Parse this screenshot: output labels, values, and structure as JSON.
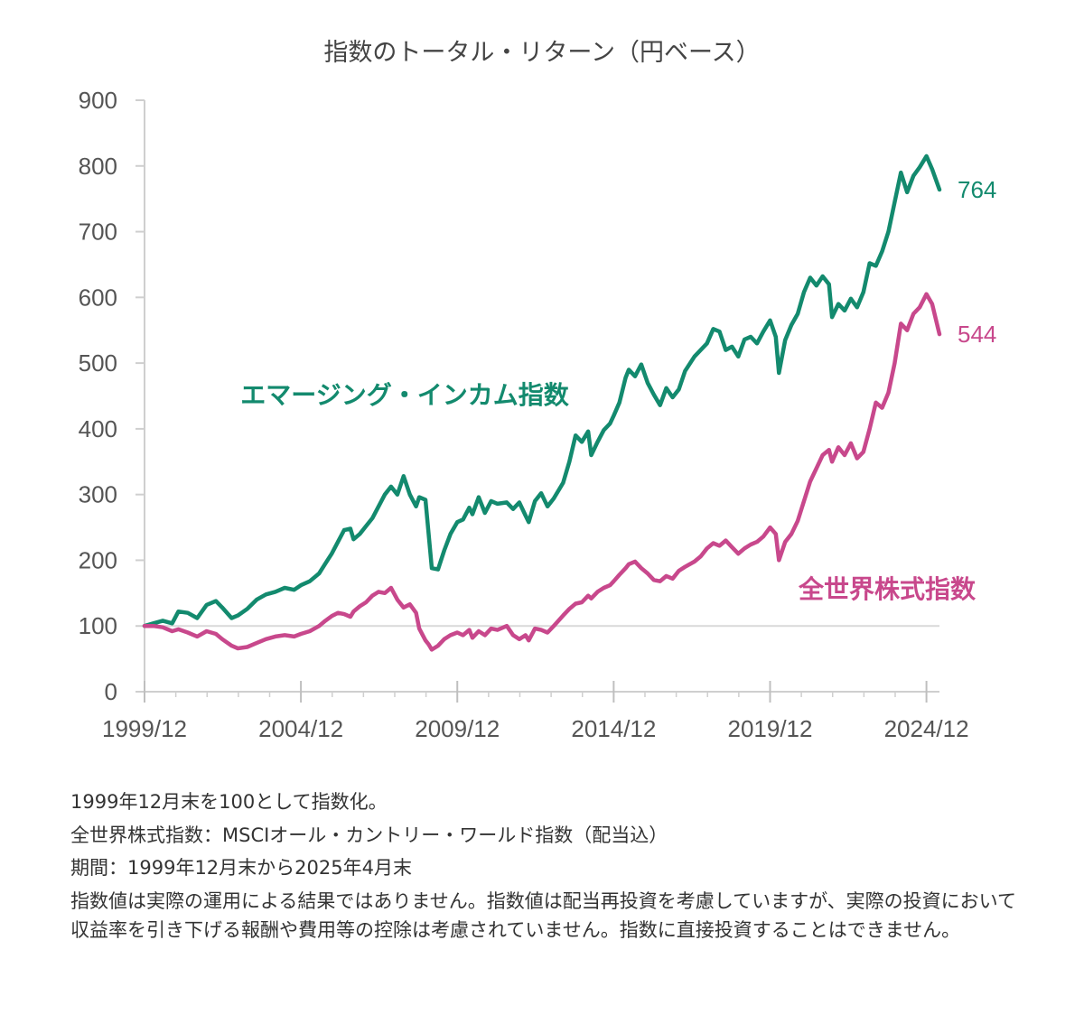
{
  "chart_data": {
    "type": "line",
    "title": "指数のトータル・リターン（円ベース）",
    "xlabel": "",
    "ylabel": "",
    "ylim": [
      0,
      900
    ],
    "yticks": [
      0,
      100,
      200,
      300,
      400,
      500,
      600,
      700,
      800,
      900
    ],
    "xlim": [
      1999.917,
      2025.333
    ],
    "xticks": [
      {
        "t": 1999.917,
        "label": "1999/12"
      },
      {
        "t": 2004.917,
        "label": "2004/12"
      },
      {
        "t": 2009.917,
        "label": "2009/12"
      },
      {
        "t": 2014.917,
        "label": "2014/12"
      },
      {
        "t": 2019.917,
        "label": "2019/12"
      },
      {
        "t": 2024.917,
        "label": "2024/12"
      }
    ],
    "reference_line": 100,
    "series": [
      {
        "name": "エマージング・インカム指数",
        "color": "#138a6e",
        "end_value": "764",
        "points": [
          [
            1999.917,
            100
          ],
          [
            2000.2,
            104
          ],
          [
            2000.5,
            108
          ],
          [
            2000.8,
            104
          ],
          [
            2001.0,
            122
          ],
          [
            2001.3,
            120
          ],
          [
            2001.6,
            112
          ],
          [
            2001.9,
            132
          ],
          [
            2002.2,
            138
          ],
          [
            2002.4,
            128
          ],
          [
            2002.7,
            112
          ],
          [
            2002.9,
            116
          ],
          [
            2003.2,
            126
          ],
          [
            2003.5,
            140
          ],
          [
            2003.8,
            148
          ],
          [
            2004.1,
            152
          ],
          [
            2004.4,
            158
          ],
          [
            2004.7,
            155
          ],
          [
            2004.917,
            162
          ],
          [
            2005.2,
            168
          ],
          [
            2005.5,
            180
          ],
          [
            2005.7,
            195
          ],
          [
            2005.9,
            210
          ],
          [
            2006.1,
            228
          ],
          [
            2006.3,
            246
          ],
          [
            2006.5,
            248
          ],
          [
            2006.6,
            232
          ],
          [
            2006.8,
            240
          ],
          [
            2007.0,
            252
          ],
          [
            2007.2,
            264
          ],
          [
            2007.4,
            282
          ],
          [
            2007.6,
            300
          ],
          [
            2007.8,
            312
          ],
          [
            2008.0,
            300
          ],
          [
            2008.2,
            328
          ],
          [
            2008.4,
            300
          ],
          [
            2008.6,
            282
          ],
          [
            2008.7,
            296
          ],
          [
            2008.9,
            292
          ],
          [
            2009.0,
            240
          ],
          [
            2009.1,
            188
          ],
          [
            2009.3,
            186
          ],
          [
            2009.5,
            215
          ],
          [
            2009.7,
            240
          ],
          [
            2009.917,
            258
          ],
          [
            2010.1,
            262
          ],
          [
            2010.3,
            280
          ],
          [
            2010.4,
            270
          ],
          [
            2010.6,
            296
          ],
          [
            2010.8,
            272
          ],
          [
            2011.0,
            290
          ],
          [
            2011.2,
            286
          ],
          [
            2011.5,
            288
          ],
          [
            2011.7,
            278
          ],
          [
            2011.9,
            288
          ],
          [
            2012.1,
            268
          ],
          [
            2012.2,
            258
          ],
          [
            2012.4,
            290
          ],
          [
            2012.6,
            302
          ],
          [
            2012.8,
            282
          ],
          [
            2013.0,
            294
          ],
          [
            2013.3,
            318
          ],
          [
            2013.5,
            350
          ],
          [
            2013.7,
            390
          ],
          [
            2013.9,
            380
          ],
          [
            2014.1,
            396
          ],
          [
            2014.2,
            360
          ],
          [
            2014.4,
            380
          ],
          [
            2014.6,
            398
          ],
          [
            2014.8,
            408
          ],
          [
            2014.917,
            420
          ],
          [
            2015.1,
            440
          ],
          [
            2015.3,
            478
          ],
          [
            2015.4,
            490
          ],
          [
            2015.6,
            480
          ],
          [
            2015.8,
            498
          ],
          [
            2016.0,
            470
          ],
          [
            2016.2,
            452
          ],
          [
            2016.4,
            436
          ],
          [
            2016.6,
            462
          ],
          [
            2016.8,
            448
          ],
          [
            2017.0,
            460
          ],
          [
            2017.2,
            488
          ],
          [
            2017.5,
            510
          ],
          [
            2017.7,
            520
          ],
          [
            2017.9,
            530
          ],
          [
            2018.1,
            552
          ],
          [
            2018.3,
            548
          ],
          [
            2018.5,
            520
          ],
          [
            2018.7,
            525
          ],
          [
            2018.9,
            510
          ],
          [
            2019.1,
            536
          ],
          [
            2019.3,
            540
          ],
          [
            2019.5,
            530
          ],
          [
            2019.7,
            548
          ],
          [
            2019.917,
            565
          ],
          [
            2020.1,
            540
          ],
          [
            2020.2,
            485
          ],
          [
            2020.4,
            535
          ],
          [
            2020.6,
            558
          ],
          [
            2020.8,
            575
          ],
          [
            2021.0,
            608
          ],
          [
            2021.2,
            630
          ],
          [
            2021.4,
            618
          ],
          [
            2021.6,
            632
          ],
          [
            2021.8,
            620
          ],
          [
            2021.9,
            570
          ],
          [
            2022.1,
            590
          ],
          [
            2022.3,
            580
          ],
          [
            2022.5,
            598
          ],
          [
            2022.7,
            585
          ],
          [
            2022.9,
            608
          ],
          [
            2023.1,
            652
          ],
          [
            2023.3,
            648
          ],
          [
            2023.5,
            670
          ],
          [
            2023.7,
            700
          ],
          [
            2023.9,
            745
          ],
          [
            2024.1,
            790
          ],
          [
            2024.3,
            760
          ],
          [
            2024.5,
            785
          ],
          [
            2024.7,
            798
          ],
          [
            2024.917,
            815
          ],
          [
            2025.1,
            795
          ],
          [
            2025.333,
            764
          ]
        ]
      },
      {
        "name": "全世界株式指数",
        "color": "#c8488c",
        "end_value": "544",
        "points": [
          [
            1999.917,
            100
          ],
          [
            2000.2,
            100
          ],
          [
            2000.5,
            98
          ],
          [
            2000.8,
            92
          ],
          [
            2001.0,
            95
          ],
          [
            2001.3,
            90
          ],
          [
            2001.6,
            84
          ],
          [
            2001.9,
            92
          ],
          [
            2002.2,
            88
          ],
          [
            2002.4,
            80
          ],
          [
            2002.7,
            70
          ],
          [
            2002.9,
            66
          ],
          [
            2003.2,
            68
          ],
          [
            2003.5,
            74
          ],
          [
            2003.8,
            80
          ],
          [
            2004.1,
            84
          ],
          [
            2004.4,
            86
          ],
          [
            2004.7,
            84
          ],
          [
            2004.917,
            88
          ],
          [
            2005.2,
            92
          ],
          [
            2005.5,
            100
          ],
          [
            2005.7,
            108
          ],
          [
            2005.9,
            115
          ],
          [
            2006.1,
            120
          ],
          [
            2006.3,
            118
          ],
          [
            2006.5,
            114
          ],
          [
            2006.6,
            122
          ],
          [
            2006.8,
            130
          ],
          [
            2007.0,
            136
          ],
          [
            2007.2,
            146
          ],
          [
            2007.4,
            152
          ],
          [
            2007.6,
            150
          ],
          [
            2007.8,
            158
          ],
          [
            2008.0,
            140
          ],
          [
            2008.2,
            128
          ],
          [
            2008.4,
            133
          ],
          [
            2008.6,
            120
          ],
          [
            2008.7,
            96
          ],
          [
            2008.9,
            78
          ],
          [
            2009.0,
            72
          ],
          [
            2009.1,
            64
          ],
          [
            2009.3,
            70
          ],
          [
            2009.5,
            80
          ],
          [
            2009.7,
            86
          ],
          [
            2009.917,
            90
          ],
          [
            2010.1,
            86
          ],
          [
            2010.3,
            94
          ],
          [
            2010.4,
            82
          ],
          [
            2010.6,
            92
          ],
          [
            2010.8,
            86
          ],
          [
            2011.0,
            96
          ],
          [
            2011.2,
            94
          ],
          [
            2011.5,
            100
          ],
          [
            2011.7,
            86
          ],
          [
            2011.9,
            80
          ],
          [
            2012.1,
            86
          ],
          [
            2012.2,
            78
          ],
          [
            2012.4,
            96
          ],
          [
            2012.6,
            94
          ],
          [
            2012.8,
            90
          ],
          [
            2013.0,
            100
          ],
          [
            2013.3,
            116
          ],
          [
            2013.5,
            126
          ],
          [
            2013.7,
            134
          ],
          [
            2013.9,
            136
          ],
          [
            2014.1,
            146
          ],
          [
            2014.2,
            142
          ],
          [
            2014.4,
            152
          ],
          [
            2014.6,
            158
          ],
          [
            2014.8,
            162
          ],
          [
            2014.917,
            168
          ],
          [
            2015.1,
            178
          ],
          [
            2015.3,
            188
          ],
          [
            2015.4,
            194
          ],
          [
            2015.6,
            198
          ],
          [
            2015.8,
            188
          ],
          [
            2016.0,
            180
          ],
          [
            2016.2,
            170
          ],
          [
            2016.4,
            168
          ],
          [
            2016.6,
            176
          ],
          [
            2016.8,
            172
          ],
          [
            2017.0,
            184
          ],
          [
            2017.2,
            190
          ],
          [
            2017.5,
            198
          ],
          [
            2017.7,
            206
          ],
          [
            2017.9,
            218
          ],
          [
            2018.1,
            226
          ],
          [
            2018.3,
            222
          ],
          [
            2018.5,
            230
          ],
          [
            2018.7,
            220
          ],
          [
            2018.9,
            210
          ],
          [
            2019.1,
            218
          ],
          [
            2019.3,
            224
          ],
          [
            2019.5,
            228
          ],
          [
            2019.7,
            236
          ],
          [
            2019.917,
            250
          ],
          [
            2020.1,
            240
          ],
          [
            2020.2,
            200
          ],
          [
            2020.4,
            228
          ],
          [
            2020.6,
            240
          ],
          [
            2020.8,
            260
          ],
          [
            2021.0,
            290
          ],
          [
            2021.2,
            320
          ],
          [
            2021.4,
            340
          ],
          [
            2021.6,
            360
          ],
          [
            2021.8,
            368
          ],
          [
            2021.9,
            350
          ],
          [
            2022.1,
            372
          ],
          [
            2022.3,
            360
          ],
          [
            2022.5,
            378
          ],
          [
            2022.7,
            355
          ],
          [
            2022.9,
            365
          ],
          [
            2023.1,
            400
          ],
          [
            2023.3,
            440
          ],
          [
            2023.5,
            432
          ],
          [
            2023.7,
            455
          ],
          [
            2023.9,
            500
          ],
          [
            2024.1,
            560
          ],
          [
            2024.3,
            550
          ],
          [
            2024.5,
            575
          ],
          [
            2024.7,
            585
          ],
          [
            2024.917,
            605
          ],
          [
            2025.1,
            590
          ],
          [
            2025.333,
            544
          ]
        ]
      }
    ]
  },
  "notes": [
    "1999年12月末を100として指数化。",
    "全世界株式指数：MSCIオール・カントリー・ワールド指数（配当込）",
    "期間：1999年12月末から2025年4月末",
    "指数値は実際の運用による結果ではありません。指数値は配当再投資を考慮していますが、実際の投資において収益率を引き下げる報酬や費用等の控除は考慮されていません。指数に直接投資することはできません。"
  ]
}
